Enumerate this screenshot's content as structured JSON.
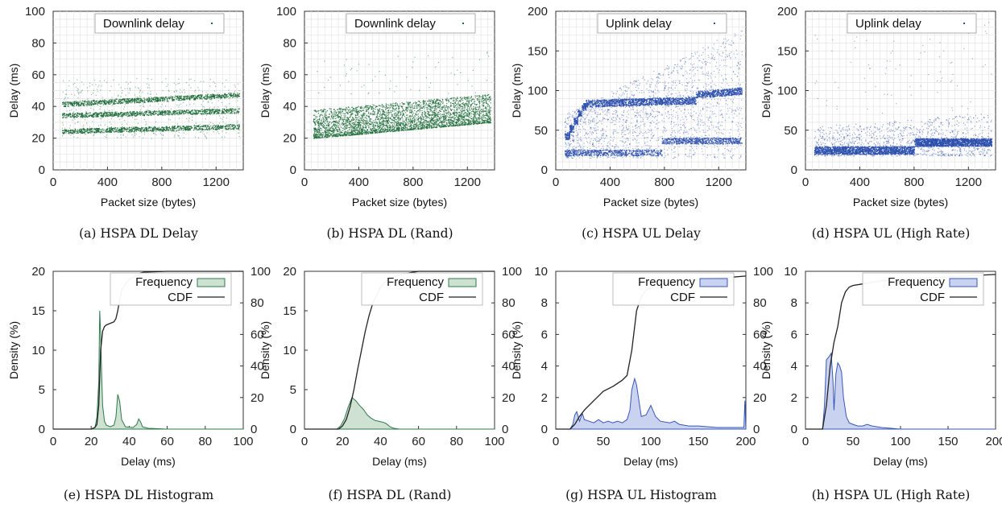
{
  "chart_data": [
    {
      "type": "scatter",
      "caption": "(a) HSPA DL Delay",
      "xlabel": "Packet size (bytes)",
      "ylabel": "Delay (ms)",
      "xlim": [
        0,
        1400
      ],
      "ylim": [
        0,
        100
      ],
      "xticks": [
        0,
        400,
        800,
        1200
      ],
      "yticks": [
        0,
        20,
        40,
        60,
        80,
        100
      ],
      "grid": true,
      "legend_position": "top",
      "color": "#1e6b3a",
      "series": [
        {
          "name": "Downlink delay",
          "x_range": [
            64,
            1370
          ],
          "bands": [
            {
              "y_start": 24.5,
              "y_end": 27.5
            },
            {
              "y_start": 34.5,
              "y_end": 37.5
            },
            {
              "y_start": 41.5,
              "y_end": 47.5
            }
          ],
          "spread": [
            20,
            58
          ]
        }
      ]
    },
    {
      "type": "scatter",
      "caption": "(b) HSPA DL (Rand)",
      "xlabel": "Packet size (bytes)",
      "ylabel": "Delay (ms)",
      "xlim": [
        0,
        1400
      ],
      "ylim": [
        0,
        100
      ],
      "xticks": [
        0,
        400,
        800,
        1200
      ],
      "yticks": [
        0,
        20,
        40,
        60,
        80,
        100
      ],
      "grid": true,
      "legend_position": "top",
      "color": "#1e6b3a",
      "series": [
        {
          "name": "Downlink delay",
          "x_range": [
            64,
            1370
          ],
          "lower_bound": [
            20,
            30
          ],
          "upper_bound": [
            38,
            48
          ]
        }
      ]
    },
    {
      "type": "scatter",
      "caption": "(c) HSPA UL Delay",
      "xlabel": "Packet size (bytes)",
      "ylabel": "Delay (ms)",
      "xlim": [
        0,
        1400
      ],
      "ylim": [
        0,
        200
      ],
      "xticks": [
        0,
        400,
        800,
        1200
      ],
      "yticks": [
        0,
        50,
        100,
        150,
        200
      ],
      "grid": true,
      "legend_position": "top",
      "color": "#2c4fad",
      "series": [
        {
          "name": "Uplink delay",
          "x_range": [
            64,
            1370
          ],
          "steps": [
            {
              "x": [
                64,
                100
              ],
              "y": 43
            },
            {
              "x": [
                100,
                130
              ],
              "y": 52
            },
            {
              "x": [
                130,
                160
              ],
              "y": 62
            },
            {
              "x": [
                160,
                190
              ],
              "y": 72
            },
            {
              "x": [
                190,
                220
              ],
              "y": 80
            },
            {
              "x": [
                220,
                1030
              ],
              "y": [
                84,
                88
              ]
            },
            {
              "x": [
                1030,
                1370
              ],
              "y": [
                95,
                100
              ]
            }
          ],
          "low_band": [
            {
              "x": [
                64,
                780
              ],
              "y": 22
            },
            {
              "x": [
                780,
                1370
              ],
              "y": 37
            }
          ],
          "spread": [
            15,
            180
          ]
        }
      ]
    },
    {
      "type": "scatter",
      "caption": "(d) HSPA UL (High Rate)",
      "xlabel": "Packet size (bytes)",
      "ylabel": "Delay (ms)",
      "xlim": [
        0,
        1400
      ],
      "ylim": [
        0,
        200
      ],
      "xticks": [
        0,
        400,
        800,
        1200
      ],
      "yticks": [
        0,
        50,
        100,
        150,
        200
      ],
      "grid": true,
      "legend_position": "top",
      "color": "#2c4fad",
      "series": [
        {
          "name": "Uplink delay",
          "x_range": [
            64,
            1370
          ],
          "bands": [
            {
              "x": [
                64,
                800
              ],
              "y": [
                20,
                30
              ]
            },
            {
              "x": [
                800,
                1370
              ],
              "y": [
                30,
                40
              ]
            }
          ],
          "spread": [
            18,
            90
          ]
        }
      ]
    },
    {
      "type": "area",
      "caption": "(e) HSPA DL Histogram",
      "xlabel": "Delay (ms)",
      "ylabel": "Density (%)",
      "xlim": [
        0,
        100
      ],
      "ylim": [
        0,
        20
      ],
      "y2lim": [
        0,
        100
      ],
      "xticks": [
        0,
        20,
        40,
        60,
        80,
        100
      ],
      "yticks": [
        0,
        5,
        10,
        15,
        20
      ],
      "y2ticks": [
        0,
        20,
        40,
        60,
        80,
        100
      ],
      "grid": false,
      "legend_position": "top",
      "fill": "#cfe2d2",
      "stroke": "#2e7a4e",
      "series": [
        {
          "name": "Frequency",
          "axis": "left",
          "x": [
            0,
            20,
            22,
            23,
            24,
            24.5,
            25,
            25.5,
            26,
            27,
            28,
            30,
            32,
            33,
            34,
            35,
            36,
            38,
            42,
            44,
            45,
            46,
            47,
            50,
            60,
            100
          ],
          "values": [
            0,
            0,
            0.2,
            1.5,
            6.0,
            15.0,
            12.0,
            7.0,
            3.0,
            1.0,
            0.5,
            0.3,
            0.5,
            1.5,
            4.4,
            3.5,
            1.2,
            0.3,
            0.2,
            0.6,
            1.3,
            0.9,
            0.3,
            0.1,
            0,
            0
          ]
        },
        {
          "name": "CDF",
          "axis": "right",
          "x": [
            0,
            20,
            22,
            23,
            24,
            25,
            26,
            27,
            28,
            32,
            33,
            34,
            35,
            36,
            38,
            40,
            44,
            46,
            48,
            60,
            100
          ],
          "values": [
            0,
            0,
            1,
            3,
            15,
            50,
            62,
            65,
            66,
            68,
            70,
            75,
            82,
            88,
            92,
            95,
            97,
            99,
            99.5,
            100,
            100
          ]
        }
      ]
    },
    {
      "type": "area",
      "caption": "(f) HSPA DL (Rand)",
      "xlabel": "Delay (ms)",
      "ylabel": "Density (%)",
      "xlim": [
        0,
        100
      ],
      "ylim": [
        0,
        20
      ],
      "y2lim": [
        0,
        100
      ],
      "xticks": [
        0,
        20,
        40,
        60,
        80,
        100
      ],
      "yticks": [
        0,
        5,
        10,
        15,
        20
      ],
      "y2ticks": [
        0,
        20,
        40,
        60,
        80,
        100
      ],
      "grid": false,
      "legend_position": "top",
      "fill": "#cfe2d2",
      "stroke": "#2e7a4e",
      "series": [
        {
          "name": "Frequency",
          "axis": "left",
          "x": [
            0,
            17,
            19,
            21,
            23,
            25,
            27,
            29,
            31,
            33,
            35,
            37,
            39,
            41,
            43,
            45,
            47,
            50,
            100
          ],
          "values": [
            0,
            0,
            0.4,
            1.3,
            2.8,
            4.0,
            3.6,
            3.0,
            2.5,
            1.8,
            1.4,
            1.1,
            1.0,
            0.9,
            0.7,
            0.3,
            0.1,
            0,
            0
          ]
        },
        {
          "name": "CDF",
          "axis": "right",
          "x": [
            0,
            18,
            20,
            22,
            24,
            26,
            28,
            30,
            32,
            34,
            36,
            40,
            44,
            48,
            55,
            60,
            100
          ],
          "values": [
            0,
            0,
            2,
            6,
            14,
            25,
            38,
            50,
            62,
            72,
            80,
            90,
            95,
            97,
            99,
            100,
            100
          ]
        }
      ]
    },
    {
      "type": "area",
      "caption": "(g) HSPA UL Histogram",
      "xlabel": "Delay (ms)",
      "ylabel": "Density (%)",
      "xlim": [
        0,
        200
      ],
      "ylim": [
        0,
        10
      ],
      "y2lim": [
        0,
        100
      ],
      "xticks": [
        0,
        50,
        100,
        150,
        200
      ],
      "yticks": [
        0,
        2,
        4,
        6,
        8,
        10
      ],
      "y2ticks": [
        0,
        20,
        40,
        60,
        80,
        100
      ],
      "grid": false,
      "legend_position": "top",
      "fill": "#c9d3f0",
      "stroke": "#3a57b8",
      "series": [
        {
          "name": "Frequency",
          "axis": "left",
          "x": [
            0,
            15,
            18,
            20,
            22,
            25,
            28,
            30,
            35,
            40,
            45,
            50,
            55,
            60,
            65,
            70,
            75,
            78,
            80,
            83,
            85,
            88,
            90,
            95,
            100,
            105,
            110,
            120,
            125,
            130,
            140,
            150,
            170,
            190,
            198,
            199,
            200
          ],
          "values": [
            0,
            0,
            0.3,
            0.9,
            1.1,
            0.5,
            1.0,
            0.6,
            0.5,
            0.4,
            0.6,
            0.4,
            0.5,
            0.4,
            0.5,
            0.4,
            0.6,
            1.2,
            2.5,
            3.2,
            2.8,
            1.6,
            0.8,
            0.9,
            1.5,
            0.8,
            0.5,
            0.4,
            0.5,
            0.3,
            0.2,
            0.2,
            0.1,
            0.1,
            0.1,
            1.8,
            0
          ]
        },
        {
          "name": "CDF",
          "axis": "right",
          "x": [
            0,
            15,
            20,
            25,
            30,
            40,
            50,
            60,
            70,
            75,
            80,
            85,
            90,
            95,
            100,
            110,
            120,
            130,
            150,
            180,
            200
          ],
          "values": [
            0,
            0,
            3,
            8,
            12,
            18,
            24,
            27,
            31,
            34,
            50,
            75,
            84,
            88,
            90,
            92,
            93,
            94,
            95,
            96,
            97
          ]
        }
      ]
    },
    {
      "type": "area",
      "caption": "(h) HSPA UL (High Rate)",
      "xlabel": "Delay (ms)",
      "ylabel": "Density (%)",
      "xlim": [
        0,
        200
      ],
      "ylim": [
        0,
        10
      ],
      "y2lim": [
        0,
        100
      ],
      "xticks": [
        0,
        50,
        100,
        150,
        200
      ],
      "yticks": [
        0,
        2,
        4,
        6,
        8,
        10
      ],
      "y2ticks": [
        0,
        20,
        40,
        60,
        80,
        100
      ],
      "grid": false,
      "legend_position": "top",
      "fill": "#c9d3f0",
      "stroke": "#3a57b8",
      "series": [
        {
          "name": "Frequency",
          "axis": "left",
          "x": [
            0,
            18,
            20,
            22,
            25,
            27,
            29,
            30,
            32,
            34,
            36,
            38,
            40,
            43,
            46,
            50,
            55,
            60,
            65,
            70,
            80,
            100,
            200
          ],
          "values": [
            0,
            0,
            1.5,
            4.4,
            4.6,
            4.8,
            3.0,
            1.2,
            3.5,
            4.2,
            4.0,
            3.6,
            2.0,
            0.8,
            0.4,
            0.3,
            0.2,
            0.2,
            0.3,
            0.2,
            0.1,
            0,
            0
          ]
        },
        {
          "name": "CDF",
          "axis": "right",
          "x": [
            0,
            18,
            22,
            26,
            30,
            34,
            38,
            42,
            46,
            50,
            60,
            70,
            80,
            100,
            200
          ],
          "values": [
            0,
            0,
            15,
            40,
            55,
            65,
            80,
            87,
            90,
            91,
            92,
            93,
            94,
            95,
            98
          ]
        }
      ]
    }
  ]
}
